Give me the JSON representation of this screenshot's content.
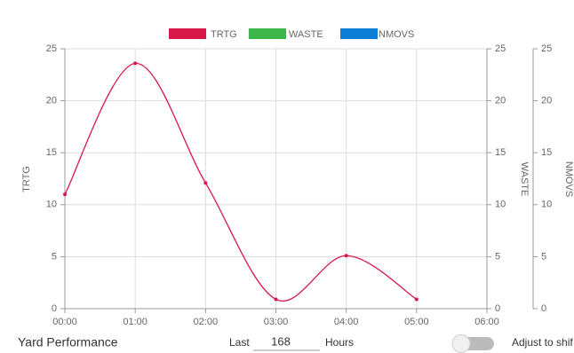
{
  "chart_data": {
    "type": "line",
    "categories": [
      "00:00",
      "01:00",
      "02:00",
      "03:00",
      "04:00",
      "05:00",
      "06:00"
    ],
    "series": [
      {
        "name": "TRTG",
        "color": "#d7194a",
        "values": [
          11,
          23.6,
          12.1,
          0.9,
          5.1,
          0.9,
          null
        ]
      },
      {
        "name": "WASTE",
        "color": "#3cb54a",
        "values": [
          null,
          null,
          null,
          null,
          null,
          null,
          null
        ],
        "axis": "y2"
      },
      {
        "name": "NMOVS",
        "color": "#0b7dd4",
        "values": [
          null,
          null,
          null,
          null,
          null,
          null,
          null
        ],
        "axis": "y3"
      }
    ],
    "ylabel": "TRTG",
    "y2label": "WASTE",
    "y3label": "NMOVS",
    "ylim": [
      0,
      25
    ],
    "yticks": [
      0,
      5,
      10,
      15,
      20,
      25
    ],
    "y2lim": [
      0,
      25
    ],
    "y2ticks": [
      0,
      5,
      10,
      15,
      20,
      25
    ],
    "y3lim": [
      0,
      25
    ],
    "y3ticks": [
      0,
      5,
      10,
      15,
      20,
      25
    ],
    "grid": true,
    "legend": "top"
  },
  "controls": {
    "title": "Yard Performance",
    "last_label": "Last",
    "hours_value": "168",
    "hours_label": "Hours",
    "toggle_label": "Adjust to shif"
  }
}
